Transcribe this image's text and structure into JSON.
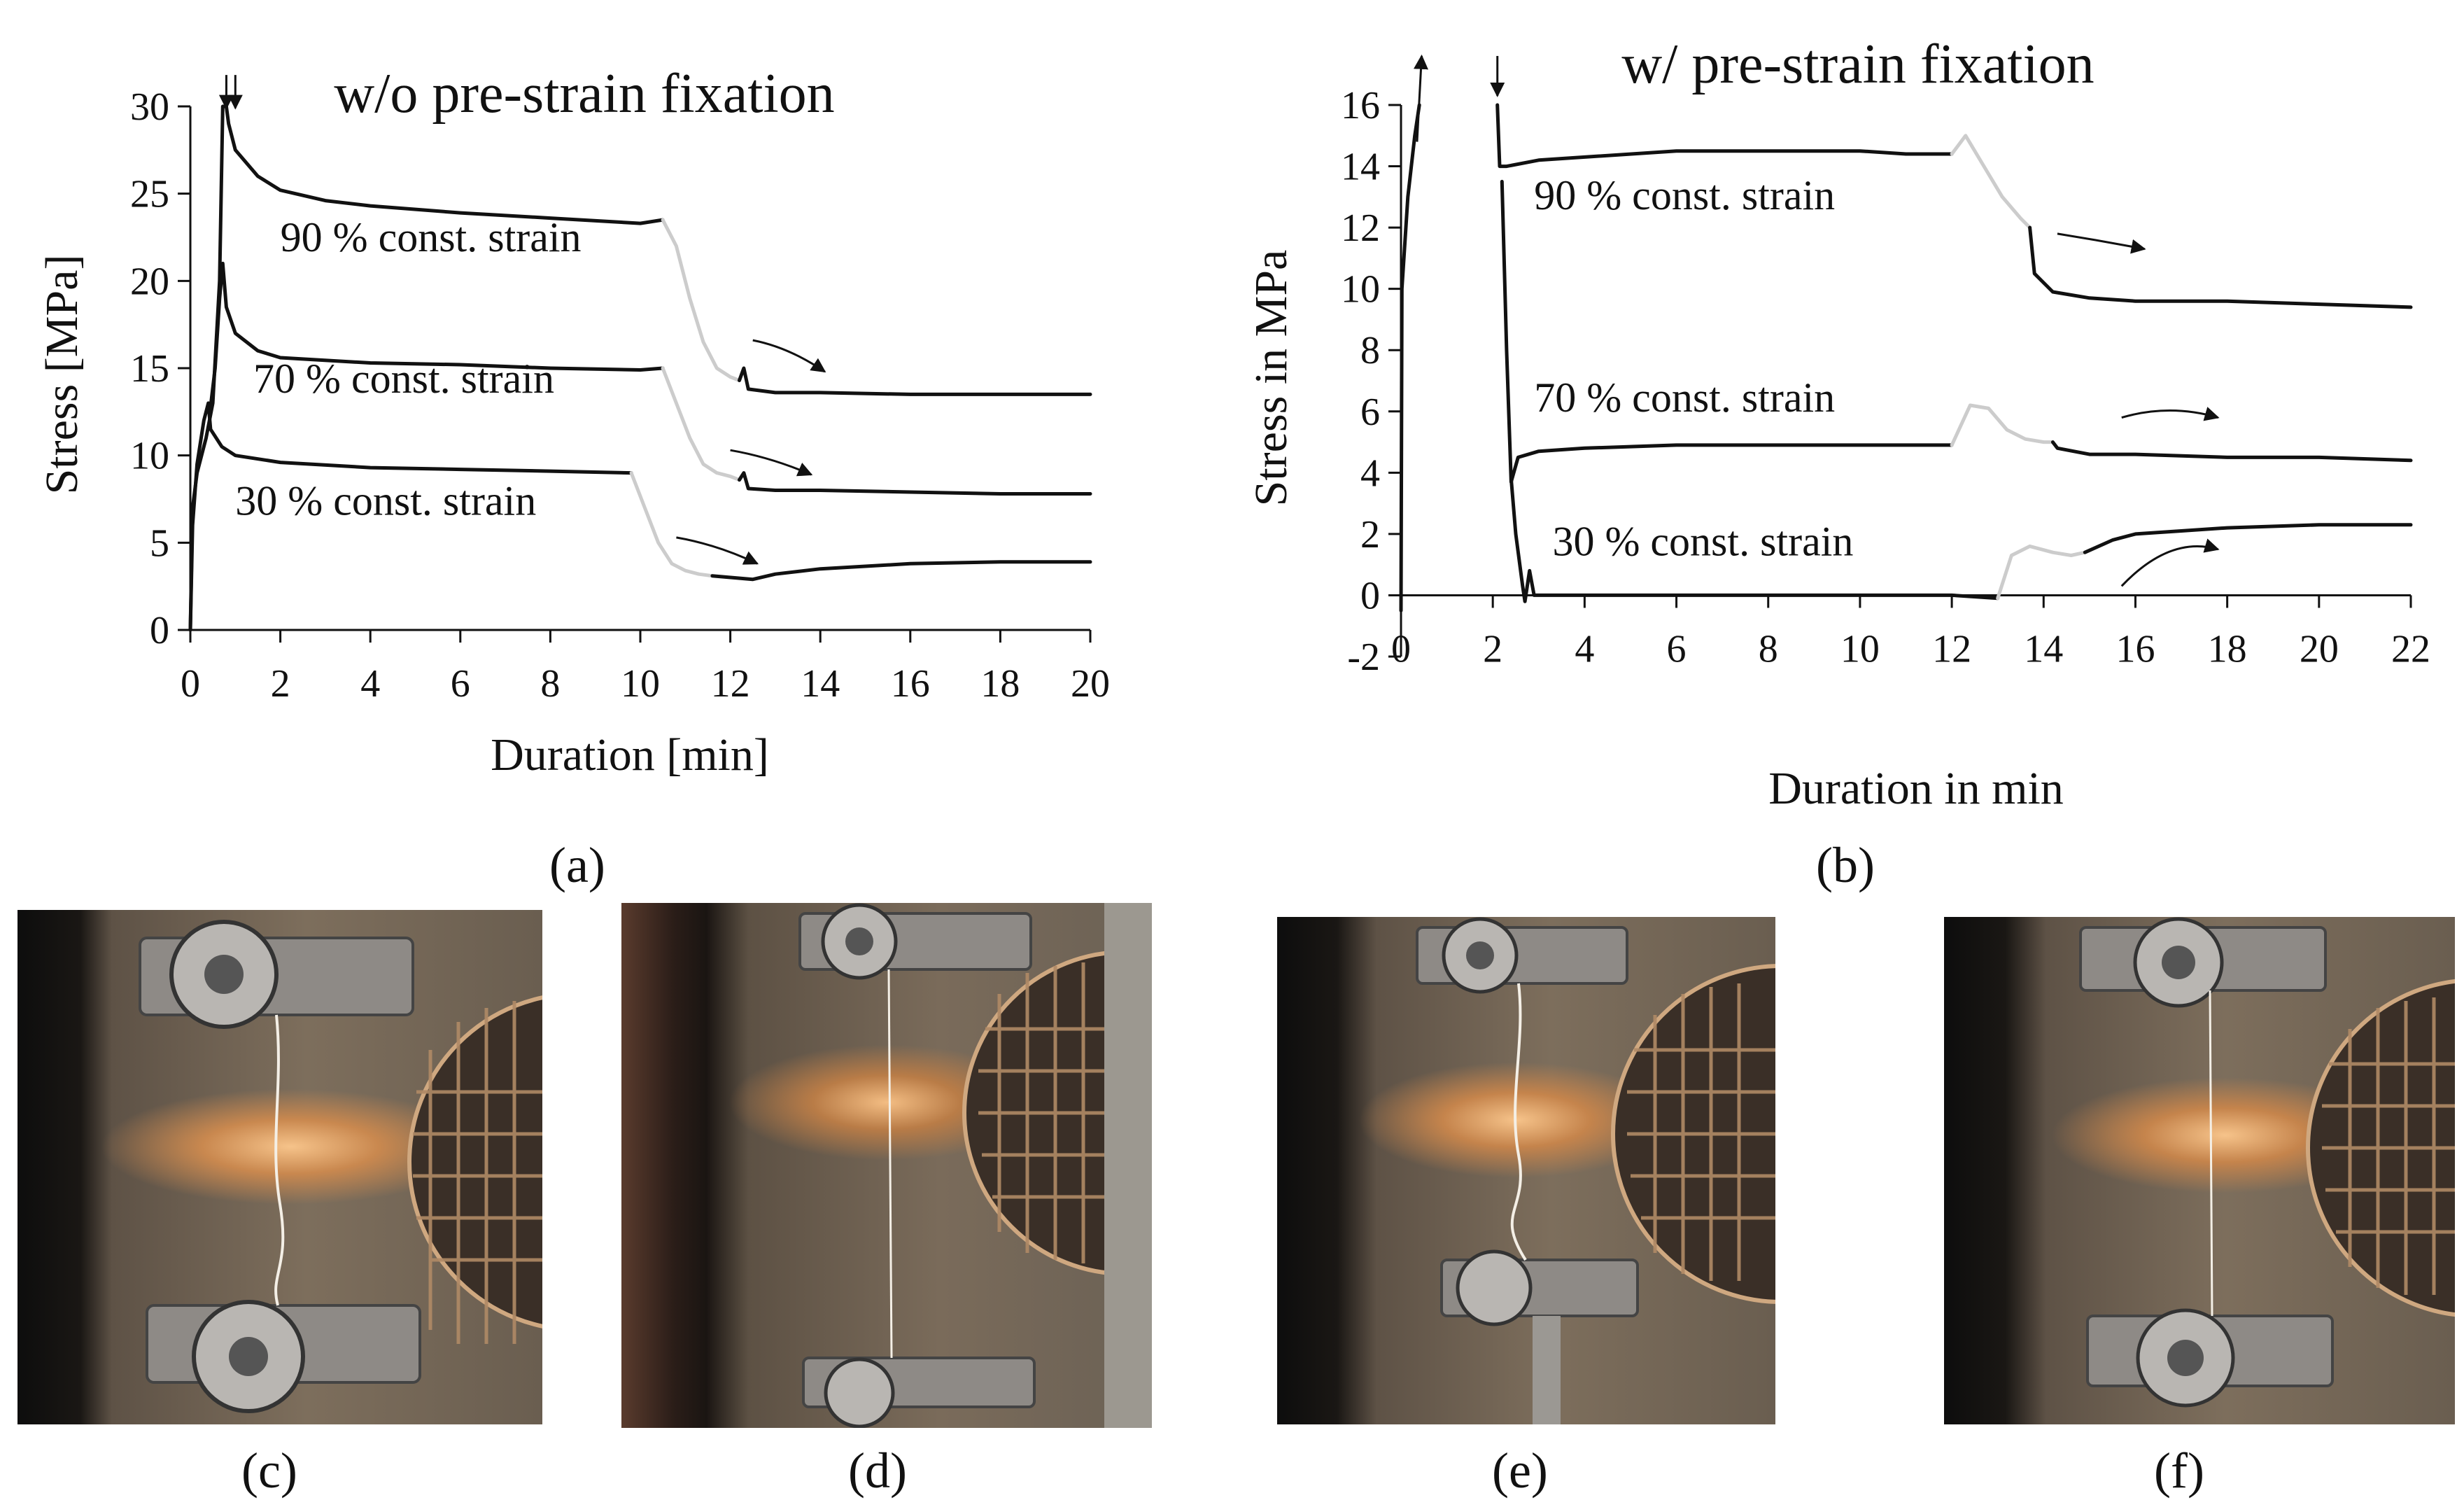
{
  "chart_data": [
    {
      "type": "line",
      "id": "a",
      "title": "w/o pre-strain fixation",
      "xlabel": "Duration [min]",
      "ylabel": "Stress [MPa]",
      "xlim": [
        0,
        20
      ],
      "ylim": [
        0,
        30
      ],
      "xticks": [
        0,
        2,
        4,
        6,
        8,
        10,
        12,
        14,
        16,
        18,
        20
      ],
      "yticks": [
        0,
        5,
        10,
        15,
        20,
        25,
        30
      ],
      "grid": false,
      "series": [
        {
          "name": "90 % const. strain",
          "label_at": [
            2,
            21.7
          ],
          "segments": [
            {
              "color": "#111111",
              "points": [
                [
                  0,
                  0
                ],
                [
                  0.05,
                  7
                ],
                [
                  0.15,
                  9
                ],
                [
                  0.35,
                  11
                ],
                [
                  0.5,
                  13
                ],
                [
                  0.65,
                  20
                ],
                [
                  0.72,
                  30
                ],
                [
                  0.8,
                  30
                ],
                [
                  0.85,
                  29
                ],
                [
                  1.0,
                  27.5
                ],
                [
                  1.5,
                  26
                ],
                [
                  2,
                  25.2
                ],
                [
                  3,
                  24.6
                ],
                [
                  4,
                  24.3
                ],
                [
                  6,
                  23.9
                ],
                [
                  8,
                  23.6
                ],
                [
                  10,
                  23.3
                ],
                [
                  10.5,
                  23.5
                ]
              ]
            },
            {
              "color": "#cccccc",
              "points": [
                [
                  10.5,
                  23.5
                ],
                [
                  10.8,
                  22
                ],
                [
                  11.1,
                  19
                ],
                [
                  11.4,
                  16.5
                ],
                [
                  11.7,
                  15
                ],
                [
                  12,
                  14.5
                ],
                [
                  12.2,
                  14.3
                ]
              ]
            },
            {
              "color": "#111111",
              "points": [
                [
                  12.2,
                  14.3
                ],
                [
                  12.3,
                  15
                ],
                [
                  12.4,
                  13.8
                ],
                [
                  13,
                  13.6
                ],
                [
                  14,
                  13.6
                ],
                [
                  16,
                  13.5
                ],
                [
                  18,
                  13.5
                ],
                [
                  20,
                  13.5
                ]
              ]
            }
          ]
        },
        {
          "name": "70 % const. strain",
          "label_at": [
            1.4,
            13.6
          ],
          "segments": [
            {
              "color": "#111111",
              "points": [
                [
                  0.45,
                  12.8
                ],
                [
                  0.55,
                  15
                ],
                [
                  0.65,
                  19
                ],
                [
                  0.72,
                  21
                ],
                [
                  0.8,
                  18.5
                ],
                [
                  1.0,
                  17
                ],
                [
                  1.5,
                  16
                ],
                [
                  2,
                  15.6
                ],
                [
                  4,
                  15.3
                ],
                [
                  6,
                  15.2
                ],
                [
                  8,
                  15
                ],
                [
                  10,
                  14.9
                ],
                [
                  10.5,
                  15
                ]
              ]
            },
            {
              "color": "#cccccc",
              "points": [
                [
                  10.5,
                  15
                ],
                [
                  10.8,
                  13
                ],
                [
                  11.1,
                  11
                ],
                [
                  11.4,
                  9.5
                ],
                [
                  11.7,
                  9
                ],
                [
                  12,
                  8.8
                ],
                [
                  12.2,
                  8.6
                ]
              ]
            },
            {
              "color": "#111111",
              "points": [
                [
                  12.2,
                  8.6
                ],
                [
                  12.3,
                  9
                ],
                [
                  12.4,
                  8.1
                ],
                [
                  13,
                  8
                ],
                [
                  14,
                  8
                ],
                [
                  16,
                  7.9
                ],
                [
                  18,
                  7.8
                ],
                [
                  20,
                  7.8
                ]
              ]
            }
          ]
        },
        {
          "name": "30 % const. strain",
          "label_at": [
            1.0,
            6.6
          ],
          "segments": [
            {
              "color": "#111111",
              "points": [
                [
                  0,
                  0
                ],
                [
                  0.05,
                  6
                ],
                [
                  0.15,
                  9.5
                ],
                [
                  0.3,
                  12
                ],
                [
                  0.4,
                  13
                ],
                [
                  0.45,
                  11.5
                ],
                [
                  0.7,
                  10.5
                ],
                [
                  1,
                  10
                ],
                [
                  2,
                  9.6
                ],
                [
                  4,
                  9.3
                ],
                [
                  6,
                  9.2
                ],
                [
                  8,
                  9.1
                ],
                [
                  9.8,
                  9
                ]
              ]
            },
            {
              "color": "#cccccc",
              "points": [
                [
                  9.8,
                  9
                ],
                [
                  10.1,
                  7
                ],
                [
                  10.4,
                  5
                ],
                [
                  10.7,
                  3.8
                ],
                [
                  11,
                  3.4
                ],
                [
                  11.3,
                  3.2
                ],
                [
                  11.6,
                  3.1
                ]
              ]
            },
            {
              "color": "#111111",
              "points": [
                [
                  11.6,
                  3.1
                ],
                [
                  12.5,
                  2.9
                ],
                [
                  13,
                  3.2
                ],
                [
                  14,
                  3.5
                ],
                [
                  16,
                  3.8
                ],
                [
                  18,
                  3.9
                ],
                [
                  20,
                  3.9
                ]
              ]
            }
          ]
        }
      ],
      "arrows": [
        {
          "from": [
            12.5,
            16.6
          ],
          "to": [
            14.1,
            14.8
          ]
        },
        {
          "from": [
            12.0,
            10.3
          ],
          "to": [
            13.8,
            8.9
          ]
        },
        {
          "from": [
            10.8,
            5.3
          ],
          "to": [
            12.6,
            3.8
          ]
        }
      ],
      "markers": [
        {
          "direction": "up",
          "at": [
            0.8,
            31.8
          ],
          "to": [
            0.8,
            29.9
          ]
        },
        {
          "direction": "down",
          "at": [
            1.0,
            31.8
          ],
          "to": [
            1.0,
            29.9
          ]
        }
      ]
    },
    {
      "type": "line",
      "id": "b",
      "title": "w/ pre-strain fixation",
      "xlabel": "Duration in min",
      "ylabel": "Stress in MPa",
      "xlim": [
        0,
        22
      ],
      "ylim": [
        -2,
        16
      ],
      "xticks": [
        0,
        2,
        4,
        6,
        8,
        10,
        12,
        14,
        16,
        18,
        20,
        22
      ],
      "yticks": [
        -2,
        0,
        2,
        4,
        6,
        8,
        10,
        12,
        14,
        16
      ],
      "grid": false,
      "series": [
        {
          "name": "90 % const. strain",
          "label_at": [
            2.9,
            12.6
          ],
          "segments": [
            {
              "color": "#111111",
              "points": [
                [
                  0,
                  -0.5
                ],
                [
                  0.02,
                  10
                ],
                [
                  0.15,
                  13
                ],
                [
                  0.3,
                  15
                ],
                [
                  0.4,
                  16
                ]
              ]
            },
            {
              "color": "#111111",
              "points": [
                [
                  2.1,
                  16
                ],
                [
                  2.15,
                  14
                ],
                [
                  2.3,
                  14
                ],
                [
                  3,
                  14.2
                ],
                [
                  4,
                  14.3
                ],
                [
                  6,
                  14.5
                ],
                [
                  8,
                  14.5
                ],
                [
                  10,
                  14.5
                ],
                [
                  11,
                  14.4
                ],
                [
                  12,
                  14.4
                ]
              ]
            },
            {
              "color": "#cccccc",
              "points": [
                [
                  12,
                  14.4
                ],
                [
                  12.3,
                  15
                ],
                [
                  12.7,
                  14
                ],
                [
                  13.1,
                  13
                ],
                [
                  13.5,
                  12.3
                ],
                [
                  13.7,
                  12
                ]
              ]
            },
            {
              "color": "#111111",
              "points": [
                [
                  13.7,
                  12
                ],
                [
                  13.8,
                  10.5
                ],
                [
                  14.2,
                  9.9
                ],
                [
                  15,
                  9.7
                ],
                [
                  16,
                  9.6
                ],
                [
                  18,
                  9.6
                ],
                [
                  20,
                  9.5
                ],
                [
                  22,
                  9.4
                ]
              ]
            }
          ]
        },
        {
          "name": "70 % const. strain",
          "label_at": [
            2.9,
            6.0
          ],
          "segments": [
            {
              "color": "#111111",
              "points": [
                [
                  2.2,
                  13.5
                ],
                [
                  2.3,
                  8
                ],
                [
                  2.4,
                  3.7
                ],
                [
                  2.55,
                  4.5
                ],
                [
                  3,
                  4.7
                ],
                [
                  4,
                  4.8
                ],
                [
                  6,
                  4.9
                ],
                [
                  8,
                  4.9
                ],
                [
                  10,
                  4.9
                ],
                [
                  12,
                  4.9
                ]
              ]
            },
            {
              "color": "#cccccc",
              "points": [
                [
                  12,
                  4.9
                ],
                [
                  12.4,
                  6.2
                ],
                [
                  12.8,
                  6.1
                ],
                [
                  13.2,
                  5.4
                ],
                [
                  13.6,
                  5.1
                ],
                [
                  14,
                  5.0
                ],
                [
                  14.2,
                  5.0
                ]
              ]
            },
            {
              "color": "#111111",
              "points": [
                [
                  14.2,
                  5.0
                ],
                [
                  14.3,
                  4.8
                ],
                [
                  15,
                  4.6
                ],
                [
                  16,
                  4.6
                ],
                [
                  18,
                  4.5
                ],
                [
                  20,
                  4.5
                ],
                [
                  22,
                  4.4
                ]
              ]
            }
          ]
        },
        {
          "name": "30 % const. strain",
          "label_at": [
            3.3,
            1.3
          ],
          "segments": [
            {
              "color": "#111111",
              "points": [
                [
                  2.4,
                  3.8
                ],
                [
                  2.5,
                  2
                ],
                [
                  2.65,
                  0.3
                ],
                [
                  2.7,
                  -0.2
                ],
                [
                  2.8,
                  0.8
                ],
                [
                  2.9,
                  0
                ],
                [
                  4,
                  0
                ],
                [
                  6,
                  0
                ],
                [
                  8,
                  0
                ],
                [
                  10,
                  0
                ],
                [
                  12,
                  0
                ],
                [
                  13,
                  -0.1
                ]
              ]
            },
            {
              "color": "#cccccc",
              "points": [
                [
                  13,
                  -0.1
                ],
                [
                  13.3,
                  1.3
                ],
                [
                  13.7,
                  1.6
                ],
                [
                  14.2,
                  1.4
                ],
                [
                  14.6,
                  1.3
                ],
                [
                  14.9,
                  1.4
                ]
              ]
            },
            {
              "color": "#111111",
              "points": [
                [
                  14.9,
                  1.4
                ],
                [
                  15.5,
                  1.8
                ],
                [
                  16,
                  2.0
                ],
                [
                  17,
                  2.1
                ],
                [
                  18,
                  2.2
                ],
                [
                  20,
                  2.3
                ],
                [
                  22,
                  2.3
                ]
              ]
            }
          ]
        }
      ],
      "arrows": [
        {
          "from": [
            14.3,
            11.8
          ],
          "to": [
            16.2,
            11.3
          ]
        },
        {
          "from": [
            15.7,
            5.8
          ],
          "to": [
            17.8,
            5.8
          ]
        },
        {
          "from": [
            15.7,
            0.3
          ],
          "to": [
            17.8,
            1.5
          ]
        }
      ],
      "markers": [
        {
          "direction": "up",
          "at": [
            0.35,
            14.8
          ],
          "to": [
            0.45,
            17.6
          ]
        },
        {
          "direction": "down",
          "at": [
            2.1,
            17.6
          ],
          "to": [
            2.1,
            16.3
          ]
        }
      ]
    }
  ],
  "panel_labels": {
    "a": "(a)",
    "b": "(b)",
    "c": "(c)",
    "d": "(d)",
    "e": "(e)",
    "f": "(f)"
  }
}
